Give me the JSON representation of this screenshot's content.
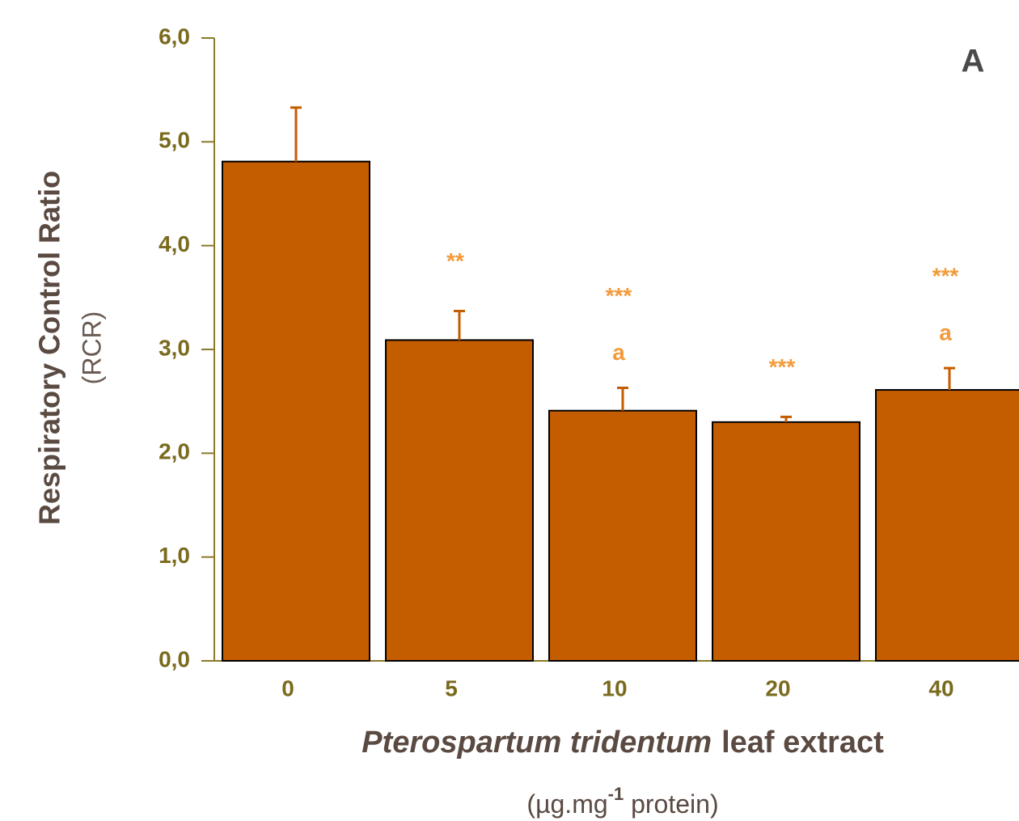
{
  "chart_data": {
    "type": "bar",
    "panel_label": "A",
    "y_label": [
      "Respiratory Control Ratio",
      "(RCR)"
    ],
    "x_label": {
      "italic": "Pterospartum tridentum",
      "rest": "leaf extract"
    },
    "x_unit": [
      "(µg.mg",
      "-1",
      " protein)"
    ],
    "categories": [
      "0",
      "5",
      "10",
      "20",
      "40"
    ],
    "values": [
      4.81,
      3.09,
      2.41,
      2.3,
      2.61
    ],
    "errors": [
      0.52,
      0.28,
      0.22,
      0.05,
      0.21
    ],
    "significance": [
      null,
      "**",
      "***",
      "***",
      "***"
    ],
    "letters": [
      null,
      null,
      "a",
      null,
      "a"
    ],
    "color": "#c45c00",
    "ylim": [
      0,
      6
    ],
    "yticks": [
      {
        "value": 0,
        "label": "0,0"
      },
      {
        "value": 1,
        "label": "1,0"
      },
      {
        "value": 2,
        "label": "2,0"
      },
      {
        "value": 3,
        "label": "3,0"
      },
      {
        "value": 4,
        "label": "4,0"
      },
      {
        "value": 5,
        "label": "5,0"
      },
      {
        "value": 6,
        "label": "6,0"
      }
    ],
    "grid": false
  }
}
